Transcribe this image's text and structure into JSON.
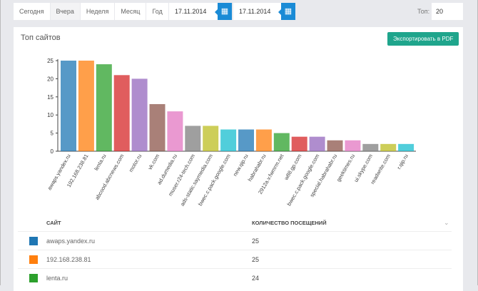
{
  "toolbar": {
    "tabs": [
      "Сегодня",
      "Вчера",
      "Неделя",
      "Месяц",
      "Год"
    ],
    "active_tab": "Вчера",
    "date_from": "17.11.2014",
    "date_to": "17.11.2014",
    "top_label": "Топ:",
    "top_value": "20"
  },
  "panel": {
    "title": "Топ сайтов",
    "export_label": "Экспортировать в PDF"
  },
  "table": {
    "headers": [
      "САЙТ",
      "КОЛИЧЕСТВО ПОСЕЩЕНИЙ"
    ],
    "rows": [
      {
        "site": "awaps.yandex.ru",
        "visits": "25",
        "color": "#1f77b4"
      },
      {
        "site": "192.168.238.81",
        "visits": "25",
        "color": "#ff7f0e"
      },
      {
        "site": "lenta.ru",
        "visits": "24",
        "color": "#2ca02c"
      }
    ]
  },
  "chart_data": {
    "type": "bar",
    "categories": [
      "awaps.yandex.ru",
      "192.168.238.81",
      "lenta.ru",
      "abcood.abcnews.com",
      "motor.ru",
      "vk.com",
      "ad.dumedia.ru",
      "muser.r24-tech.com",
      "ads-static.saymedia.com",
      "bwec.c.pack.google.com",
      "new.qip.ru",
      "habrahabr.ru",
      "2912a.v.fwmrm.net",
      "w88.gp.com",
      "bwec.c.pack.google.com",
      "special.habrahabr.ru",
      "geektimes.ru",
      "ui.skype.com",
      "readwrite.com",
      "r.qip.ru"
    ],
    "values": [
      25,
      25,
      24,
      21,
      20,
      13,
      11,
      7,
      7,
      6,
      6,
      6,
      5,
      4,
      4,
      3,
      3,
      2,
      2,
      2
    ],
    "colors": [
      "#1f77b4",
      "#ff7f0e",
      "#2ca02c",
      "#d62728",
      "#9467bd",
      "#8c564b",
      "#e377c2",
      "#7f7f7f",
      "#bcbd22",
      "#17becf"
    ],
    "ylim": [
      0,
      25
    ],
    "yticks": [
      0,
      5,
      10,
      15,
      20,
      25
    ],
    "grid": false,
    "legend": "none"
  }
}
